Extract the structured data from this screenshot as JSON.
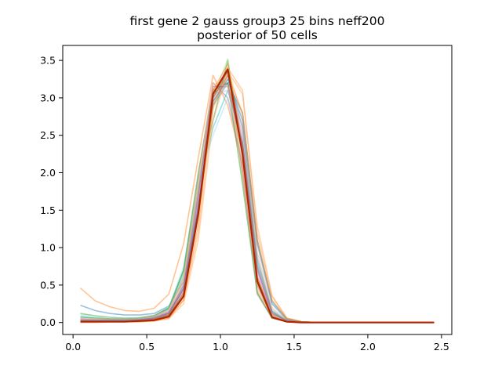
{
  "chart_data": {
    "type": "line",
    "title": "first gene 2 gauss group3 25 bins neff200",
    "subtitle": "posterior of 50 cells",
    "xlabel": "",
    "ylabel": "",
    "xlim": [
      -0.07,
      2.57
    ],
    "ylim": [
      -0.16,
      3.7
    ],
    "x_ticks": [
      0.0,
      0.5,
      1.0,
      1.5,
      2.0,
      2.5
    ],
    "x_tick_labels": [
      "0.0",
      "0.5",
      "1.0",
      "1.5",
      "2.0",
      "2.5"
    ],
    "y_ticks": [
      0.0,
      0.5,
      1.0,
      1.5,
      2.0,
      2.5,
      3.0,
      3.5
    ],
    "y_tick_labels": [
      "0.0",
      "0.5",
      "1.0",
      "1.5",
      "2.0",
      "2.5",
      "3.0",
      "3.5"
    ],
    "grid": false,
    "legend": "none",
    "x": [
      0.05,
      0.15,
      0.25,
      0.35,
      0.45,
      0.55,
      0.65,
      0.75,
      0.85,
      0.95,
      1.05,
      1.15,
      1.25,
      1.35,
      1.45,
      1.55,
      1.65,
      1.75,
      1.85,
      1.95,
      2.05,
      2.15,
      2.25,
      2.35,
      2.45
    ],
    "series": [
      {
        "color": "#1f77b4",
        "values": [
          0.23,
          0.16,
          0.12,
          0.1,
          0.1,
          0.12,
          0.22,
          0.55,
          1.5,
          2.9,
          3.2,
          2.8,
          1.1,
          0.28,
          0.05,
          0.01,
          0,
          0,
          0,
          0,
          0,
          0,
          0,
          0,
          0
        ]
      },
      {
        "color": "#ff7f0e",
        "values": [
          0.46,
          0.29,
          0.21,
          0.16,
          0.15,
          0.19,
          0.38,
          1.05,
          2.2,
          3.3,
          2.9,
          2.1,
          0.6,
          0.1,
          0.02,
          0,
          0,
          0,
          0,
          0,
          0,
          0,
          0,
          0,
          0
        ]
      },
      {
        "color": "#2ca02c",
        "values": [
          0.12,
          0.09,
          0.07,
          0.06,
          0.06,
          0.09,
          0.18,
          0.7,
          1.9,
          2.7,
          3.5,
          2.3,
          0.55,
          0.12,
          0.02,
          0,
          0,
          0,
          0,
          0,
          0,
          0,
          0,
          0,
          0
        ]
      },
      {
        "color": "#d62728",
        "values": [
          0.02,
          0.02,
          0.02,
          0.02,
          0.03,
          0.05,
          0.12,
          0.45,
          1.6,
          3.05,
          3.4,
          2.0,
          0.4,
          0.06,
          0.01,
          0,
          0,
          0,
          0,
          0,
          0,
          0,
          0,
          0,
          0
        ]
      },
      {
        "color": "#9467bd",
        "values": [
          0.05,
          0.04,
          0.04,
          0.04,
          0.05,
          0.08,
          0.18,
          0.6,
          1.95,
          3.2,
          3.0,
          2.1,
          0.5,
          0.08,
          0.01,
          0,
          0,
          0,
          0,
          0,
          0,
          0,
          0,
          0,
          0
        ]
      },
      {
        "color": "#8c564b",
        "values": [
          0.03,
          0.03,
          0.03,
          0.03,
          0.04,
          0.07,
          0.15,
          0.5,
          1.7,
          3.05,
          3.2,
          2.3,
          0.6,
          0.1,
          0.02,
          0,
          0,
          0,
          0,
          0,
          0,
          0,
          0,
          0,
          0
        ]
      },
      {
        "color": "#e377c2",
        "values": [
          0.04,
          0.03,
          0.03,
          0.03,
          0.04,
          0.06,
          0.13,
          0.42,
          1.55,
          2.95,
          3.3,
          2.5,
          0.7,
          0.1,
          0.02,
          0,
          0,
          0,
          0,
          0,
          0,
          0,
          0,
          0,
          0
        ]
      },
      {
        "color": "#17becf",
        "values": [
          0.08,
          0.06,
          0.05,
          0.05,
          0.06,
          0.09,
          0.19,
          0.65,
          1.8,
          2.6,
          3.1,
          2.4,
          0.8,
          0.16,
          0.03,
          0,
          0,
          0,
          0,
          0,
          0,
          0,
          0,
          0,
          0
        ]
      },
      {
        "color": "#ff9f4a",
        "values": [
          0.01,
          0.01,
          0.01,
          0.01,
          0.01,
          0.03,
          0.06,
          0.3,
          1.2,
          2.85,
          3.4,
          3.1,
          1.2,
          0.35,
          0.06,
          0.01,
          0,
          0,
          0,
          0,
          0,
          0,
          0,
          0,
          0
        ]
      },
      {
        "color": "#98df8a",
        "values": [
          0.06,
          0.05,
          0.04,
          0.04,
          0.05,
          0.08,
          0.17,
          0.6,
          1.85,
          3.0,
          3.52,
          1.9,
          0.42,
          0.08,
          0.01,
          0,
          0,
          0,
          0,
          0,
          0,
          0,
          0,
          0,
          0
        ]
      },
      {
        "color": "#aec7e8",
        "values": [
          0.05,
          0.04,
          0.04,
          0.04,
          0.05,
          0.07,
          0.14,
          0.48,
          1.6,
          2.9,
          3.25,
          2.6,
          0.9,
          0.18,
          0.03,
          0,
          0,
          0,
          0,
          0,
          0,
          0,
          0,
          0,
          0
        ]
      },
      {
        "color": "#bcbd22",
        "values": [
          0.02,
          0.02,
          0.02,
          0.02,
          0.03,
          0.05,
          0.12,
          0.52,
          1.75,
          3.1,
          3.35,
          2.2,
          0.5,
          0.07,
          0.01,
          0,
          0,
          0,
          0,
          0,
          0,
          0,
          0,
          0,
          0
        ]
      },
      {
        "color": "#7f7f7f",
        "values": [
          0.01,
          0.01,
          0.01,
          0.01,
          0.02,
          0.04,
          0.1,
          0.4,
          1.5,
          3.0,
          3.3,
          2.6,
          0.85,
          0.15,
          0.02,
          0,
          0,
          0,
          0,
          0,
          0,
          0,
          0,
          0,
          0
        ]
      },
      {
        "color": "#c5b0d5",
        "values": [
          0.03,
          0.03,
          0.03,
          0.03,
          0.04,
          0.06,
          0.14,
          0.5,
          1.65,
          3.05,
          3.1,
          2.4,
          0.65,
          0.1,
          0.02,
          0,
          0,
          0,
          0,
          0,
          0,
          0,
          0,
          0,
          0
        ]
      },
      {
        "color": "#ffbb78",
        "values": [
          0.02,
          0.02,
          0.02,
          0.02,
          0.02,
          0.04,
          0.09,
          0.35,
          1.4,
          2.95,
          3.4,
          2.75,
          0.95,
          0.2,
          0.03,
          0,
          0,
          0,
          0,
          0,
          0,
          0,
          0,
          0,
          0
        ]
      },
      {
        "color": "#9edae5",
        "values": [
          0.1,
          0.08,
          0.06,
          0.06,
          0.07,
          0.1,
          0.2,
          0.75,
          1.9,
          2.5,
          3.0,
          2.2,
          0.75,
          0.15,
          0.03,
          0,
          0,
          0,
          0,
          0,
          0,
          0,
          0,
          0,
          0
        ]
      },
      {
        "color": "#ff9896",
        "values": [
          0.04,
          0.04,
          0.03,
          0.03,
          0.04,
          0.07,
          0.15,
          0.55,
          1.8,
          3.15,
          3.2,
          2.0,
          0.45,
          0.07,
          0.01,
          0,
          0,
          0,
          0,
          0,
          0,
          0,
          0,
          0,
          0
        ]
      },
      {
        "color": "#ffa55c",
        "values": [
          0.01,
          0.01,
          0.01,
          0.01,
          0.01,
          0.02,
          0.05,
          0.25,
          1.1,
          2.7,
          3.35,
          3.05,
          1.3,
          0.36,
          0.06,
          0.01,
          0,
          0,
          0,
          0,
          0,
          0,
          0,
          0,
          0
        ]
      },
      {
        "color": "#1f77b4",
        "values": [
          0.03,
          0.03,
          0.03,
          0.03,
          0.04,
          0.06,
          0.13,
          0.45,
          1.55,
          2.95,
          3.25,
          2.7,
          1.05,
          0.25,
          0.04,
          0.01,
          0,
          0,
          0,
          0,
          0,
          0,
          0,
          0,
          0
        ]
      },
      {
        "color": "#2ca02c",
        "values": [
          0.07,
          0.06,
          0.05,
          0.05,
          0.06,
          0.09,
          0.2,
          0.7,
          2.0,
          3.1,
          3.2,
          1.85,
          0.38,
          0.06,
          0.01,
          0,
          0,
          0,
          0,
          0,
          0,
          0,
          0,
          0,
          0
        ]
      },
      {
        "color": "#ff7f0e",
        "values": [
          0.02,
          0.02,
          0.02,
          0.02,
          0.03,
          0.05,
          0.11,
          0.4,
          1.45,
          2.9,
          3.3,
          2.8,
          1.1,
          0.3,
          0.05,
          0.01,
          0,
          0,
          0,
          0,
          0,
          0,
          0,
          0,
          0
        ]
      },
      {
        "color": "#9467bd",
        "values": [
          0.02,
          0.02,
          0.02,
          0.02,
          0.03,
          0.05,
          0.12,
          0.48,
          1.7,
          3.15,
          3.15,
          2.35,
          0.7,
          0.12,
          0.02,
          0,
          0,
          0,
          0,
          0,
          0,
          0,
          0,
          0,
          0
        ]
      },
      {
        "color": "#ffbb78",
        "values": [
          0.06,
          0.05,
          0.05,
          0.05,
          0.06,
          0.09,
          0.17,
          0.6,
          1.9,
          3.2,
          3.15,
          2.1,
          0.55,
          0.1,
          0.02,
          0,
          0,
          0,
          0,
          0,
          0,
          0,
          0,
          0,
          0
        ]
      },
      {
        "color": "#8c564b",
        "values": [
          0.01,
          0.01,
          0.01,
          0.01,
          0.02,
          0.04,
          0.1,
          0.38,
          1.5,
          3.0,
          3.35,
          2.4,
          0.75,
          0.14,
          0.02,
          0,
          0,
          0,
          0,
          0,
          0,
          0,
          0,
          0,
          0
        ]
      },
      {
        "color": "#ff7f0e",
        "values": [
          0.0,
          0.0,
          0.01,
          0.01,
          0.01,
          0.02,
          0.06,
          0.3,
          1.3,
          3.1,
          3.45,
          2.3,
          0.6,
          0.08,
          0.01,
          0,
          0,
          0,
          0,
          0,
          0,
          0,
          0,
          0,
          0
        ]
      },
      {
        "color": "#b22400",
        "values": [
          0.01,
          0.01,
          0.01,
          0.01,
          0.02,
          0.03,
          0.08,
          0.35,
          1.45,
          3.05,
          3.38,
          2.25,
          0.55,
          0.07,
          0.01,
          0,
          0,
          0,
          0,
          0,
          0,
          0,
          0,
          0,
          0
        ]
      }
    ]
  }
}
